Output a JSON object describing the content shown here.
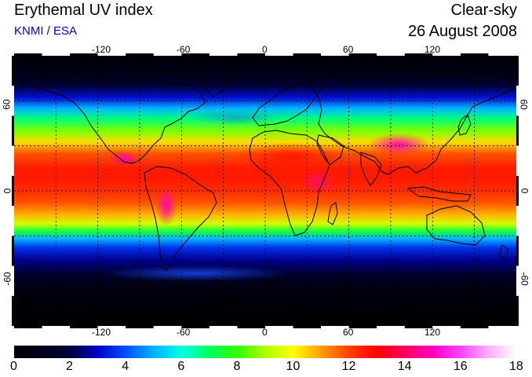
{
  "header": {
    "title": "Erythemal UV index",
    "source": "KNMI / ESA",
    "condition": "Clear-sky",
    "date": "26 August 2008"
  },
  "map": {
    "projection": "equirectangular",
    "lon_range": [
      -180,
      180
    ],
    "lat_range": [
      -90,
      90
    ],
    "grid": {
      "lon_step": 30,
      "lat_step": 30,
      "style": "dotted"
    },
    "lon_labels": [
      "-120",
      "-60",
      "0",
      "60",
      "120"
    ],
    "lat_labels_left": [
      "60",
      "0",
      "-60"
    ],
    "lat_labels_right": [
      "60",
      "0",
      "-60"
    ],
    "field": "UV index by latitude band, maximum near 10°N (August), with local maxima over the Andes, Tibetan plateau and Sahara/Arabia",
    "colors": {
      "ocean_background": "#000000",
      "coastline": "#000000",
      "grid": "#000000"
    }
  },
  "colorbar": {
    "min": 0,
    "max": 18,
    "labels": [
      "0",
      "2",
      "4",
      "6",
      "8",
      "10",
      "12",
      "14",
      "16",
      "18"
    ],
    "stops": [
      {
        "v": 0,
        "c": "#000000"
      },
      {
        "v": 2,
        "c": "#00003a"
      },
      {
        "v": 3,
        "c": "#0000c8"
      },
      {
        "v": 4,
        "c": "#0050ff"
      },
      {
        "v": 5,
        "c": "#00b4ff"
      },
      {
        "v": 6,
        "c": "#00ffe0"
      },
      {
        "v": 7,
        "c": "#00ff60"
      },
      {
        "v": 8,
        "c": "#30ff00"
      },
      {
        "v": 9,
        "c": "#b0ff00"
      },
      {
        "v": 10,
        "c": "#ffff00"
      },
      {
        "v": 11,
        "c": "#ffa000"
      },
      {
        "v": 12,
        "c": "#ff4000"
      },
      {
        "v": 13,
        "c": "#ff0000"
      },
      {
        "v": 14,
        "c": "#ff0060"
      },
      {
        "v": 15,
        "c": "#ff00c0"
      },
      {
        "v": 16,
        "c": "#ff40ff"
      },
      {
        "v": 17,
        "c": "#ffb0ff"
      },
      {
        "v": 18,
        "c": "#ffffff"
      }
    ]
  }
}
